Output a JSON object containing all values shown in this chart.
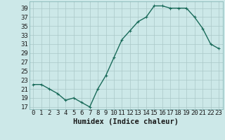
{
  "x": [
    0,
    1,
    2,
    3,
    4,
    5,
    6,
    7,
    8,
    9,
    10,
    11,
    12,
    13,
    14,
    15,
    16,
    17,
    18,
    19,
    20,
    21,
    22,
    23
  ],
  "y": [
    22,
    22,
    21,
    20,
    18.5,
    19,
    18,
    17,
    21,
    24,
    28,
    32,
    34,
    36,
    37,
    39.5,
    39.5,
    39,
    39,
    39,
    37,
    34.5,
    31,
    30
  ],
  "line_color": "#1a6b5a",
  "marker": "+",
  "marker_size": 3,
  "bg_color": "#cce8e8",
  "grid_color": "#aac8c8",
  "xlabel": "Humidex (Indice chaleur)",
  "xlim": [
    -0.5,
    23.5
  ],
  "ylim": [
    16.5,
    40.5
  ],
  "yticks": [
    17,
    19,
    21,
    23,
    25,
    27,
    29,
    31,
    33,
    35,
    37,
    39
  ],
  "xtick_labels": [
    "0",
    "1",
    "2",
    "3",
    "4",
    "5",
    "6",
    "7",
    "8",
    "9",
    "10",
    "11",
    "12",
    "13",
    "14",
    "15",
    "16",
    "17",
    "18",
    "19",
    "20",
    "21",
    "22",
    "23"
  ],
  "font_color": "#1a1a1a",
  "xlabel_fontsize": 7.5,
  "tick_fontsize": 6.5,
  "linewidth": 1.0,
  "markeredgewidth": 0.8
}
